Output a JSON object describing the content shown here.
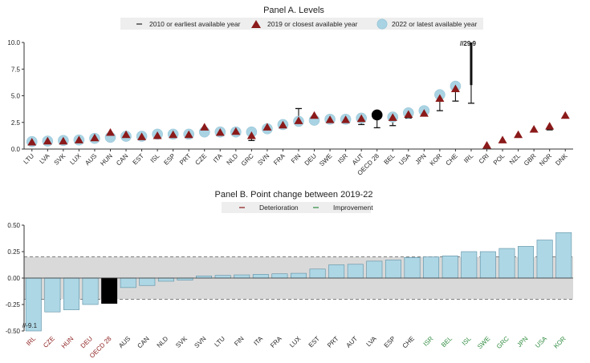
{
  "chart_data": [
    {
      "type": "scatter",
      "title": "Panel A. Levels",
      "legend": [
        {
          "label": "2010  or earliest available year",
          "marker": "dash",
          "color": "#222222"
        },
        {
          "label": "2019  or closest available year",
          "marker": "triangle",
          "color": "#8b1a1a"
        },
        {
          "label": "2022  or latest available year",
          "marker": "circle",
          "color": "#a9d3e3"
        }
      ],
      "ylim": [
        0,
        10
      ],
      "yticks": [
        "0.0",
        "2.5",
        "5.0",
        "7.5",
        "10.0"
      ],
      "categories": [
        "LTU",
        "LVA",
        "SVK",
        "LUX",
        "AUS",
        "HUN",
        "CAN",
        "EST",
        "ISL",
        "ESP",
        "PRT",
        "CZE",
        "ITA",
        "NLD",
        "GRC",
        "SVN",
        "FRA",
        "FIN",
        "DEU",
        "SWE",
        "ISR",
        "AUT",
        "OECD 28",
        "BEL",
        "USA",
        "JPN",
        "KOR",
        "CHE",
        "IRL",
        "CRI",
        "POL",
        "NZL",
        "GBR",
        "NOR",
        "DNK"
      ],
      "highlight": "OECD 28",
      "series": [
        {
          "name": "2010 or earliest available year",
          "values": [
            0.5,
            0.6,
            0.7,
            0.8,
            0.9,
            1.1,
            1.2,
            1.1,
            1.0,
            1.1,
            1.2,
            1.5,
            1.6,
            1.7,
            0.8,
            2.0,
            2.2,
            3.8,
            2.9,
            2.6,
            2.5,
            2.3,
            2.0,
            2.2,
            2.9,
            3.2,
            3.6,
            4.5,
            4.3,
            null,
            null,
            null,
            null,
            1.8,
            null
          ]
        },
        {
          "name": "2019 or closest available year",
          "values": [
            0.6,
            0.7,
            0.7,
            0.8,
            1.0,
            1.5,
            1.3,
            1.1,
            1.2,
            1.3,
            1.3,
            2.0,
            1.5,
            1.6,
            1.2,
            2.0,
            2.2,
            2.6,
            3.1,
            2.7,
            2.7,
            2.8,
            3.2,
            2.9,
            3.2,
            3.3,
            4.7,
            5.6,
            null,
            0.3,
            0.8,
            1.3,
            1.8,
            2.1,
            3.1
          ]
        },
        {
          "name": "2022 or latest available year",
          "values": [
            0.7,
            0.75,
            0.8,
            0.85,
            1.0,
            1.1,
            1.2,
            1.2,
            1.4,
            1.4,
            1.4,
            1.6,
            1.6,
            1.6,
            1.6,
            1.9,
            2.3,
            2.6,
            2.7,
            2.8,
            2.8,
            2.9,
            3.2,
            3.0,
            3.4,
            3.6,
            5.1,
            5.9,
            null,
            null,
            null,
            null,
            null,
            null,
            null
          ]
        }
      ],
      "annotation": {
        "category": "IRL",
        "text": "//29.9",
        "value": 29.9
      }
    },
    {
      "type": "bar",
      "title": "Panel B. Point change between 2019-22",
      "legend": [
        {
          "label": "Deterioration",
          "color": "#8b1a1a"
        },
        {
          "label": "Improvement",
          "color": "#2e8b3e"
        }
      ],
      "ylim": [
        -0.5,
        0.5
      ],
      "yticks": [
        "-0.50",
        "-0.25",
        "0.00",
        "0.25",
        "0.50"
      ],
      "band": [
        -0.2,
        0.2
      ],
      "categories": [
        "IRL",
        "CZE",
        "HUN",
        "DEU",
        "OECD 28",
        "AUS",
        "CAN",
        "NLD",
        "SVK",
        "SVN",
        "LTU",
        "FIN",
        "ITA",
        "FRA",
        "LUX",
        "EST",
        "PRT",
        "AUT",
        "LVA",
        "ESP",
        "CHE",
        "ISR",
        "BEL",
        "ISL",
        "SWE",
        "GRC",
        "JPN",
        "USA",
        "KOR"
      ],
      "values": [
        -0.5,
        -0.32,
        -0.3,
        -0.25,
        -0.24,
        -0.09,
        -0.07,
        -0.03,
        -0.02,
        0.02,
        0.025,
        0.03,
        0.035,
        0.04,
        0.045,
        0.085,
        0.125,
        0.13,
        0.16,
        0.17,
        0.195,
        0.2,
        0.21,
        0.25,
        0.25,
        0.28,
        0.3,
        0.36,
        0.43
      ],
      "label_status": [
        "deterioration",
        "deterioration",
        "deterioration",
        "deterioration",
        "deterioration",
        "neutral",
        "neutral",
        "neutral",
        "neutral",
        "neutral",
        "neutral",
        "neutral",
        "neutral",
        "neutral",
        "neutral",
        "neutral",
        "neutral",
        "neutral",
        "neutral",
        "neutral",
        "neutral",
        "improvement",
        "improvement",
        "improvement",
        "improvement",
        "improvement",
        "improvement",
        "improvement",
        "improvement"
      ],
      "highlight": "OECD 28",
      "annotation": {
        "category": "IRL",
        "text": "//-9.1",
        "value": -9.1
      }
    }
  ],
  "colors": {
    "circle": "#a9d3e3",
    "circle_stroke": "#9cc8d9",
    "triangle": "#8b1a1a",
    "bar": "#aed7e5",
    "bar_stroke": "#5a8ea3",
    "highlight": "#000000",
    "deterioration": "#8b1a1a",
    "improvement": "#2e8b3e",
    "neutral": "#222222",
    "band": "#d9d9d9"
  }
}
